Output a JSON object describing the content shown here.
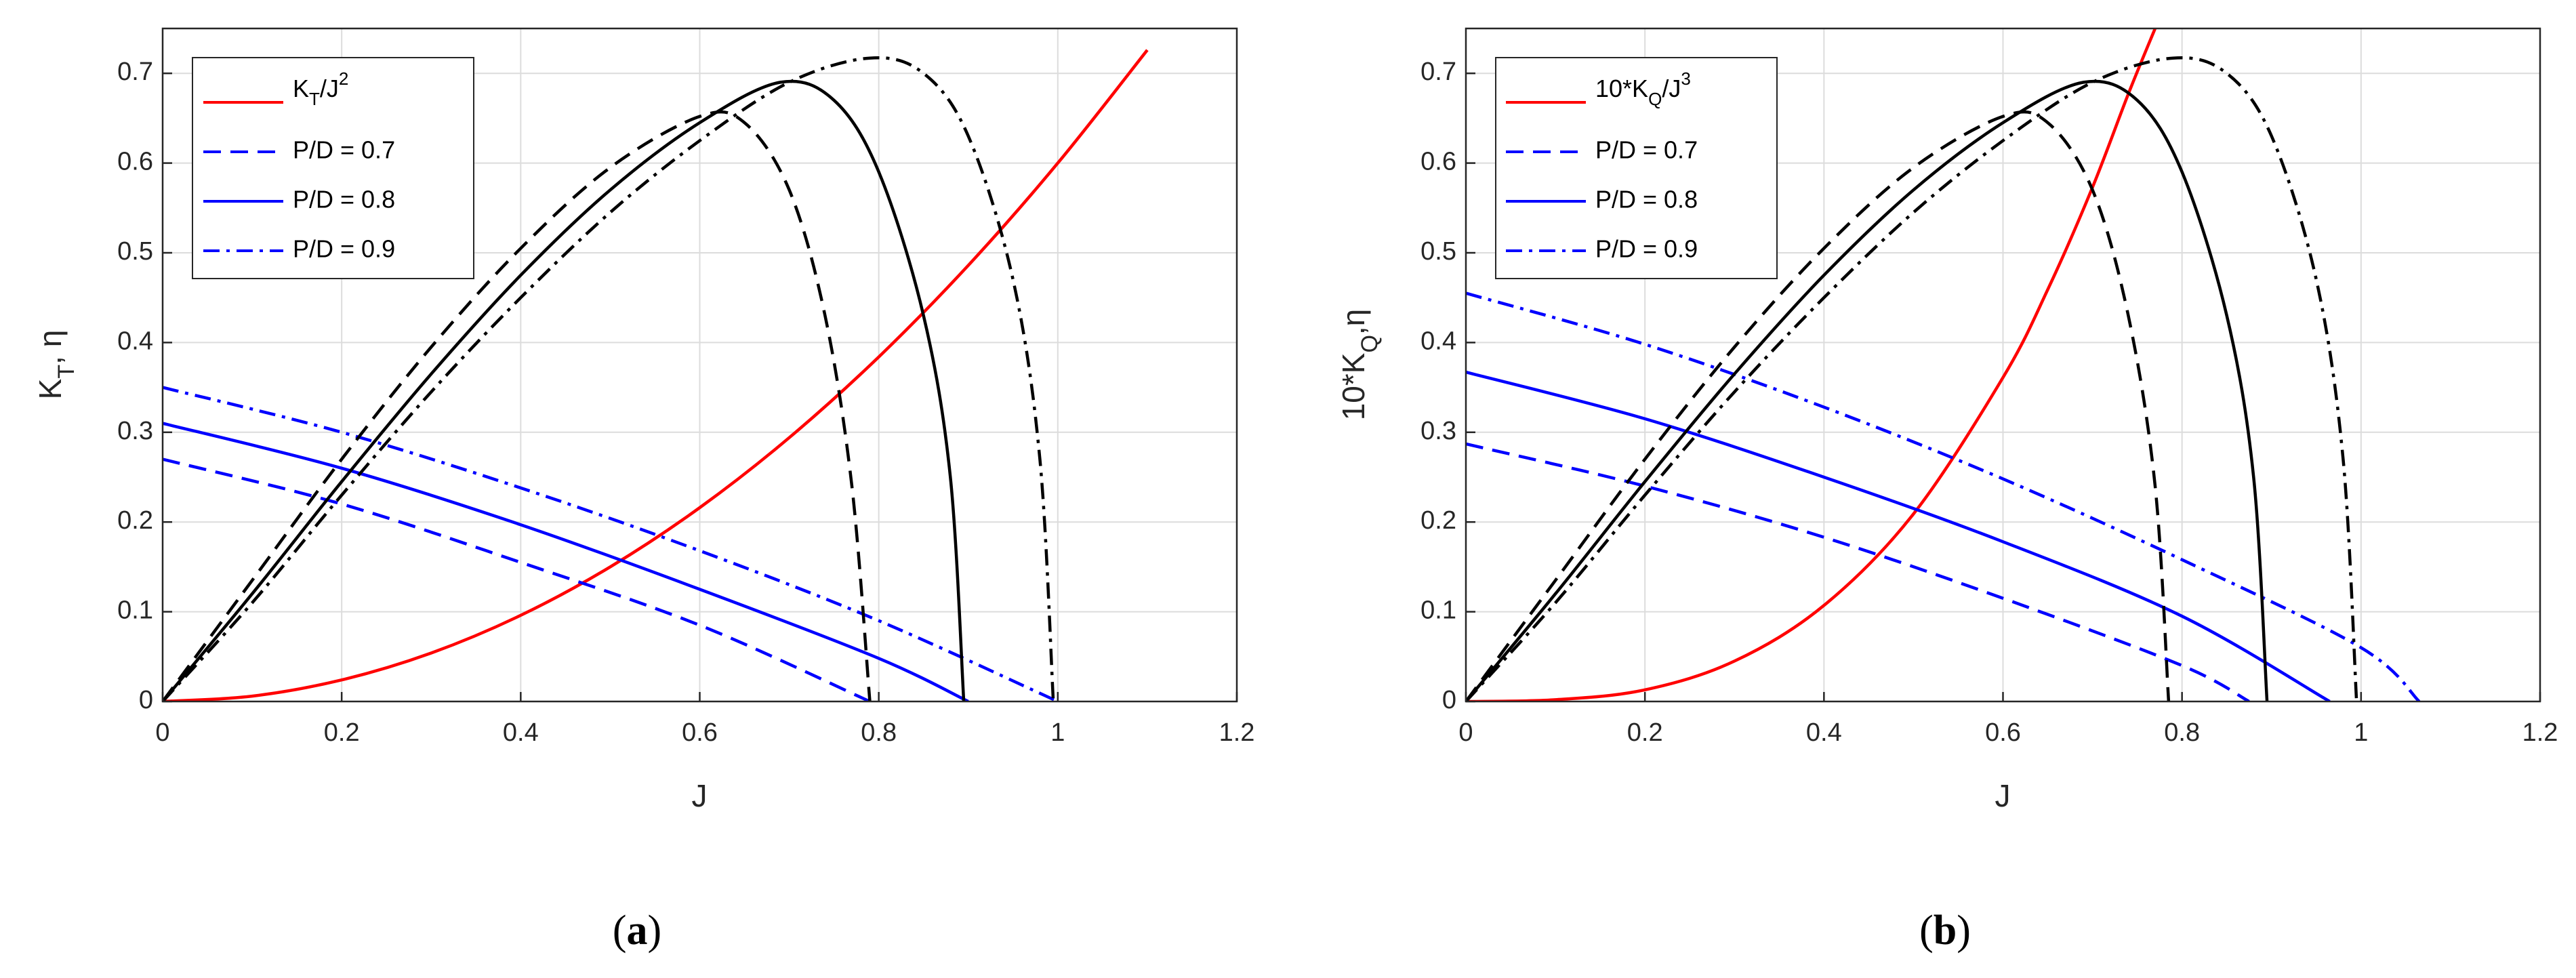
{
  "chart_data": [
    {
      "type": "line",
      "panel": "a",
      "caption": {
        "open": "(",
        "letter": "a",
        "close": ")"
      },
      "xlabel": "J",
      "ylabel": {
        "main": "K",
        "sub": "T",
        "rest": ", η"
      },
      "xlim": [
        0,
        1.2
      ],
      "ylim": [
        0,
        0.75
      ],
      "xticks": [
        "0",
        "0.2",
        "0.4",
        "0.6",
        "0.8",
        "1",
        "1.2"
      ],
      "yticks": [
        "0",
        "0.1",
        "0.2",
        "0.3",
        "0.4",
        "0.5",
        "0.6",
        "0.7"
      ],
      "grid": true,
      "legend": {
        "position": "top-left",
        "entries": [
          {
            "main": "K",
            "sub": "T",
            "mid": "/J",
            "sup": "2",
            "style": "solid",
            "color": "#ff0000"
          },
          {
            "label": "P/D = 0.7",
            "style": "dashed",
            "color": "#0000ff"
          },
          {
            "label": "P/D = 0.8",
            "style": "solid",
            "color": "#0000ff"
          },
          {
            "label": "P/D = 0.9",
            "style": "dashdot",
            "color": "#0000ff"
          }
        ]
      },
      "series": [
        {
          "name": "K_T/J^2",
          "color": "#ff0000",
          "style": "solid",
          "x": [
            0,
            0.1,
            0.2,
            0.3,
            0.4,
            0.5,
            0.6,
            0.7,
            0.8,
            0.9,
            1.0,
            1.1
          ],
          "y": [
            0,
            0.006,
            0.024,
            0.054,
            0.096,
            0.15,
            0.216,
            0.294,
            0.384,
            0.486,
            0.6,
            0.726
          ]
        },
        {
          "name": "K_T P/D = 0.7",
          "color": "#0000ff",
          "style": "dashed",
          "x": [
            0,
            0.2,
            0.4,
            0.6,
            0.79
          ],
          "y": [
            0.27,
            0.22,
            0.155,
            0.085,
            0.0
          ]
        },
        {
          "name": "K_T P/D = 0.8",
          "color": "#0000ff",
          "style": "solid",
          "x": [
            0,
            0.2,
            0.4,
            0.6,
            0.8,
            0.9
          ],
          "y": [
            0.31,
            0.26,
            0.197,
            0.125,
            0.048,
            0.0
          ]
        },
        {
          "name": "K_T P/D = 0.9",
          "color": "#0000ff",
          "style": "dashdot",
          "x": [
            0,
            0.2,
            0.4,
            0.6,
            0.8,
            1.0
          ],
          "y": [
            0.35,
            0.3,
            0.238,
            0.168,
            0.09,
            0.0
          ]
        },
        {
          "name": "η P/D = 0.7",
          "color": "#000000",
          "style": "dashed",
          "x": [
            0,
            0.1,
            0.2,
            0.3,
            0.4,
            0.5,
            0.6,
            0.65,
            0.7,
            0.74,
            0.77,
            0.79
          ],
          "y": [
            0,
            0.135,
            0.27,
            0.395,
            0.505,
            0.595,
            0.652,
            0.645,
            0.57,
            0.43,
            0.24,
            0.0
          ]
        },
        {
          "name": "η P/D = 0.8",
          "color": "#000000",
          "style": "solid",
          "x": [
            0,
            0.1,
            0.2,
            0.3,
            0.4,
            0.5,
            0.6,
            0.69,
            0.75,
            0.8,
            0.85,
            0.88,
            0.895
          ],
          "y": [
            0,
            0.12,
            0.245,
            0.365,
            0.475,
            0.57,
            0.645,
            0.69,
            0.67,
            0.59,
            0.43,
            0.25,
            0.0
          ]
        },
        {
          "name": "η P/D = 0.9",
          "color": "#000000",
          "style": "dashdot",
          "x": [
            0,
            0.1,
            0.2,
            0.3,
            0.4,
            0.5,
            0.6,
            0.7,
            0.79,
            0.85,
            0.9,
            0.95,
            0.98,
            0.995
          ],
          "y": [
            0,
            0.11,
            0.23,
            0.345,
            0.45,
            0.545,
            0.625,
            0.69,
            0.717,
            0.7,
            0.63,
            0.47,
            0.27,
            0.0
          ]
        }
      ]
    },
    {
      "type": "line",
      "panel": "b",
      "caption": {
        "open": "(",
        "letter": "b",
        "close": ")"
      },
      "xlabel": "J",
      "ylabel": {
        "main": "10*K",
        "sub": "Q",
        "rest": ",η"
      },
      "xlim": [
        0,
        1.2
      ],
      "ylim": [
        0,
        0.75
      ],
      "xticks": [
        "0",
        "0.2",
        "0.4",
        "0.6",
        "0.8",
        "1",
        "1.2"
      ],
      "yticks": [
        "0",
        "0.1",
        "0.2",
        "0.3",
        "0.4",
        "0.5",
        "0.6",
        "0.7"
      ],
      "grid": true,
      "legend": {
        "position": "top-left",
        "entries": [
          {
            "main": "10*K",
            "sub": "Q",
            "mid": "/J",
            "sup": "3",
            "style": "solid",
            "color": "#ff0000"
          },
          {
            "label": "P/D = 0.7",
            "style": "dashed",
            "color": "#0000ff"
          },
          {
            "label": "P/D = 0.8",
            "style": "solid",
            "color": "#0000ff"
          },
          {
            "label": "P/D = 0.9",
            "style": "dashdot",
            "color": "#0000ff"
          }
        ]
      },
      "series": [
        {
          "name": "10*K_Q/J^3",
          "color": "#ff0000",
          "style": "solid",
          "x": [
            0,
            0.1,
            0.2,
            0.3,
            0.4,
            0.5,
            0.6,
            0.65,
            0.7,
            0.74,
            0.77
          ],
          "y": [
            0,
            0.002,
            0.013,
            0.045,
            0.107,
            0.209,
            0.361,
            0.459,
            0.573,
            0.677,
            0.75
          ]
        },
        {
          "name": "10*K_Q P/D = 0.7",
          "color": "#0000ff",
          "style": "dashed",
          "x": [
            0,
            0.2,
            0.4,
            0.6,
            0.8,
            0.875
          ],
          "y": [
            0.287,
            0.24,
            0.183,
            0.115,
            0.04,
            0.0
          ]
        },
        {
          "name": "10*K_Q P/D = 0.8",
          "color": "#0000ff",
          "style": "solid",
          "x": [
            0,
            0.2,
            0.4,
            0.6,
            0.8,
            0.965
          ],
          "y": [
            0.367,
            0.315,
            0.25,
            0.178,
            0.095,
            0.0
          ]
        },
        {
          "name": "10*K_Q P/D = 0.9",
          "color": "#0000ff",
          "style": "dashdot",
          "x": [
            0,
            0.2,
            0.4,
            0.6,
            0.8,
            1.0,
            1.065
          ],
          "y": [
            0.455,
            0.398,
            0.328,
            0.248,
            0.158,
            0.06,
            0.0
          ]
        },
        {
          "name": "η P/D = 0.7",
          "color": "#000000",
          "style": "dashed",
          "x": [
            0,
            0.1,
            0.2,
            0.3,
            0.4,
            0.5,
            0.6,
            0.65,
            0.7,
            0.74,
            0.77,
            0.785
          ],
          "y": [
            0,
            0.135,
            0.27,
            0.395,
            0.505,
            0.595,
            0.652,
            0.645,
            0.57,
            0.43,
            0.24,
            0.0
          ]
        },
        {
          "name": "η P/D = 0.8",
          "color": "#000000",
          "style": "solid",
          "x": [
            0,
            0.1,
            0.2,
            0.3,
            0.4,
            0.5,
            0.6,
            0.69,
            0.75,
            0.8,
            0.85,
            0.88,
            0.895
          ],
          "y": [
            0,
            0.12,
            0.245,
            0.365,
            0.475,
            0.57,
            0.645,
            0.69,
            0.67,
            0.59,
            0.43,
            0.25,
            0.0
          ]
        },
        {
          "name": "η P/D = 0.9",
          "color": "#000000",
          "style": "dashdot",
          "x": [
            0,
            0.1,
            0.2,
            0.3,
            0.4,
            0.5,
            0.6,
            0.7,
            0.79,
            0.85,
            0.9,
            0.95,
            0.98,
            0.995
          ],
          "y": [
            0,
            0.11,
            0.23,
            0.345,
            0.45,
            0.545,
            0.625,
            0.69,
            0.717,
            0.7,
            0.63,
            0.47,
            0.27,
            0.0
          ]
        }
      ]
    }
  ]
}
